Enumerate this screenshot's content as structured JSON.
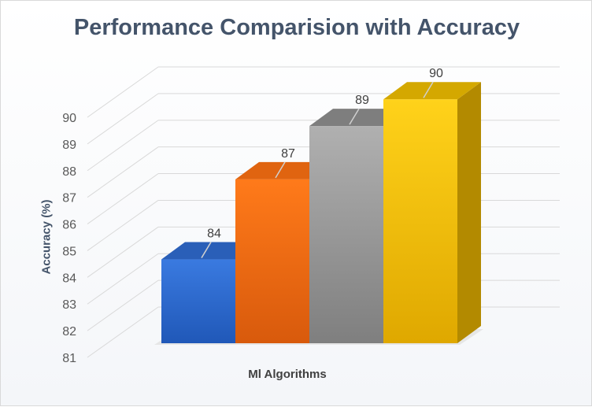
{
  "chart_data": {
    "type": "bar",
    "style": "3d-column",
    "title": "Performance Comparision with Accuracy",
    "xlabel": "Ml Algorithms",
    "ylabel": "Accuracy (%)",
    "ylim": [
      81,
      90
    ],
    "y_ticks": [
      "81",
      "82",
      "83",
      "84",
      "85",
      "86",
      "87",
      "88",
      "89",
      "90"
    ],
    "values": [
      84.2,
      87.2,
      89.2,
      90.2
    ],
    "data_labels": [
      "84",
      "87",
      "89",
      "90"
    ],
    "colors": [
      "#2e6fd4",
      "#f57216",
      "#a5a5a5",
      "#ffc800"
    ],
    "grid": true,
    "legend": "none"
  }
}
